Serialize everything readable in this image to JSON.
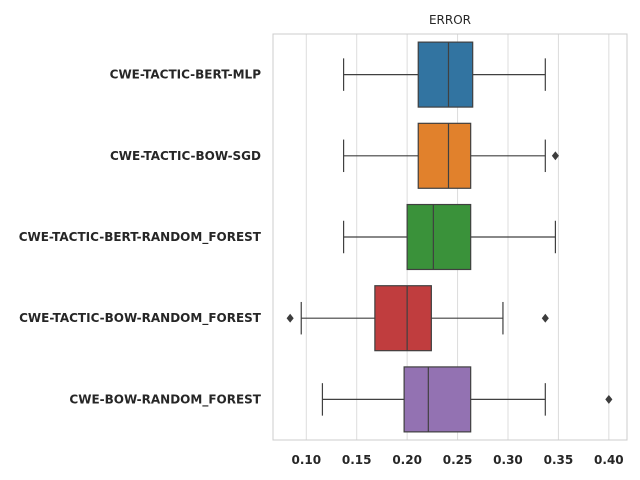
{
  "chart_data": {
    "type": "boxplot",
    "orientation": "horizontal",
    "title": "ERROR",
    "xlabel": "",
    "ylabel": "",
    "xlim": [
      0.067,
      0.418
    ],
    "xticks": [
      0.1,
      0.15,
      0.2,
      0.25,
      0.3,
      0.35,
      0.4
    ],
    "xtick_labels": [
      "0.10",
      "0.15",
      "0.20",
      "0.25",
      "0.30",
      "0.35",
      "0.40"
    ],
    "grid": "vertical",
    "categories": [
      "CWE-TACTIC-BERT-MLP",
      "CWE-TACTIC-BOW-SGD",
      "CWE-TACTIC-BERT-RANDOM_FOREST",
      "CWE-TACTIC-BOW-RANDOM_FOREST",
      "CWE-BOW-RANDOM_FOREST"
    ],
    "boxes": [
      {
        "whisker_low": 0.137,
        "q1": 0.211,
        "median": 0.241,
        "q3": 0.265,
        "whisker_high": 0.337,
        "outliers": [],
        "color": "#3274a1"
      },
      {
        "whisker_low": 0.137,
        "q1": 0.211,
        "median": 0.241,
        "q3": 0.263,
        "whisker_high": 0.337,
        "outliers": [
          0.347
        ],
        "color": "#e1812c"
      },
      {
        "whisker_low": 0.137,
        "q1": 0.2,
        "median": 0.226,
        "q3": 0.263,
        "whisker_high": 0.347,
        "outliers": [],
        "color": "#3a923a"
      },
      {
        "whisker_low": 0.095,
        "q1": 0.168,
        "median": 0.2,
        "q3": 0.224,
        "whisker_high": 0.295,
        "outliers": [
          0.084,
          0.337
        ],
        "color": "#c03d3e"
      },
      {
        "whisker_low": 0.116,
        "q1": 0.197,
        "median": 0.221,
        "q3": 0.263,
        "whisker_high": 0.337,
        "outliers": [
          0.4
        ],
        "color": "#9372b2"
      }
    ]
  }
}
